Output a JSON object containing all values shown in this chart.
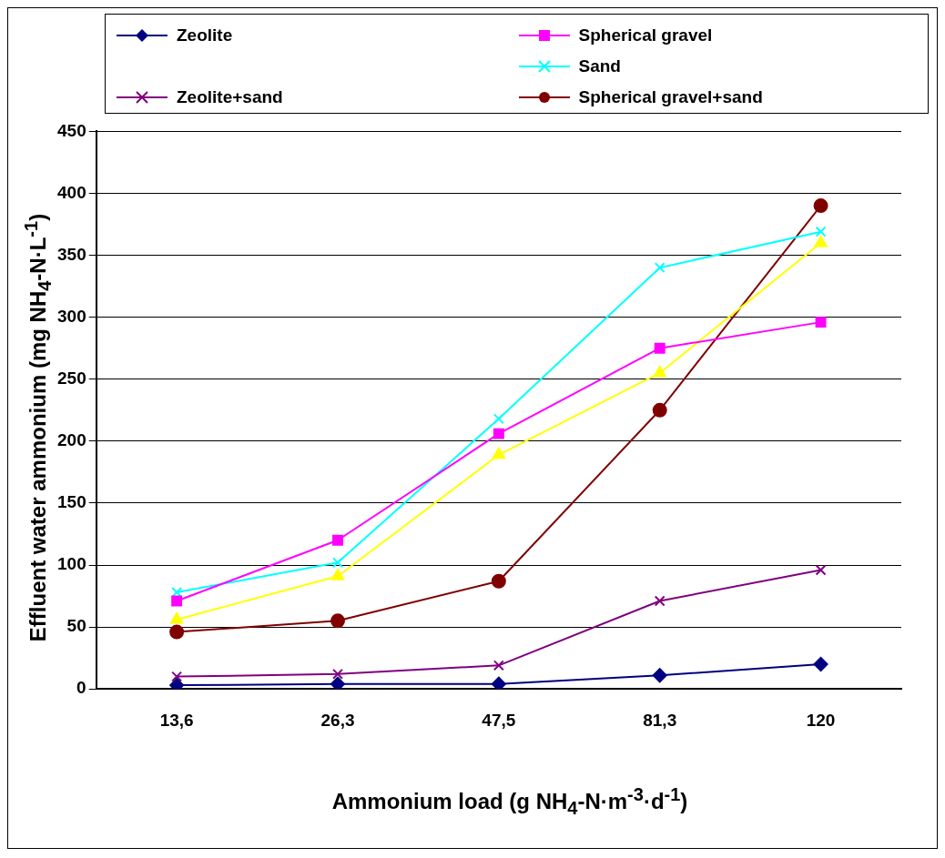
{
  "chart_data": {
    "type": "line",
    "xlabel": "Ammonium load (g NH$_{4}$-N·m$^{-3}$·d$^{-1}$)",
    "ylabel": "Effluent water ammonium (mg NH$_{4}$-N·L$^{-1}$)",
    "categories": [
      "13,6",
      "26,3",
      "47,5",
      "81,3",
      "120"
    ],
    "ylim": [
      0,
      450
    ],
    "yticks": [
      0,
      50,
      100,
      150,
      200,
      250,
      300,
      350,
      400,
      450
    ],
    "grid": "y",
    "legend": "top",
    "line_style": "solid",
    "series": [
      {
        "name": "Zeolite",
        "color": "#000080",
        "marker": "diamond",
        "values": [
          3,
          4,
          4,
          11,
          20
        ]
      },
      {
        "name": "Spherical gravel",
        "color": "#ff00ff",
        "marker": "square",
        "values": [
          71,
          120,
          206,
          275,
          296
        ]
      },
      {
        "color": "#ffff00",
        "marker": "triangle",
        "values": [
          56,
          91,
          189,
          255,
          360
        ]
      },
      {
        "name": "Sand",
        "color": "#00ffff",
        "marker": "cross",
        "values": [
          78,
          102,
          218,
          340,
          369
        ]
      },
      {
        "name": "Zeolite+sand",
        "color": "#800080",
        "marker": "cross",
        "values": [
          10,
          12,
          19,
          71,
          96
        ]
      },
      {
        "name": "Spherical gravel+sand",
        "color": "#800000",
        "marker": "circle",
        "values": [
          46,
          55,
          87,
          225,
          390
        ]
      }
    ]
  }
}
